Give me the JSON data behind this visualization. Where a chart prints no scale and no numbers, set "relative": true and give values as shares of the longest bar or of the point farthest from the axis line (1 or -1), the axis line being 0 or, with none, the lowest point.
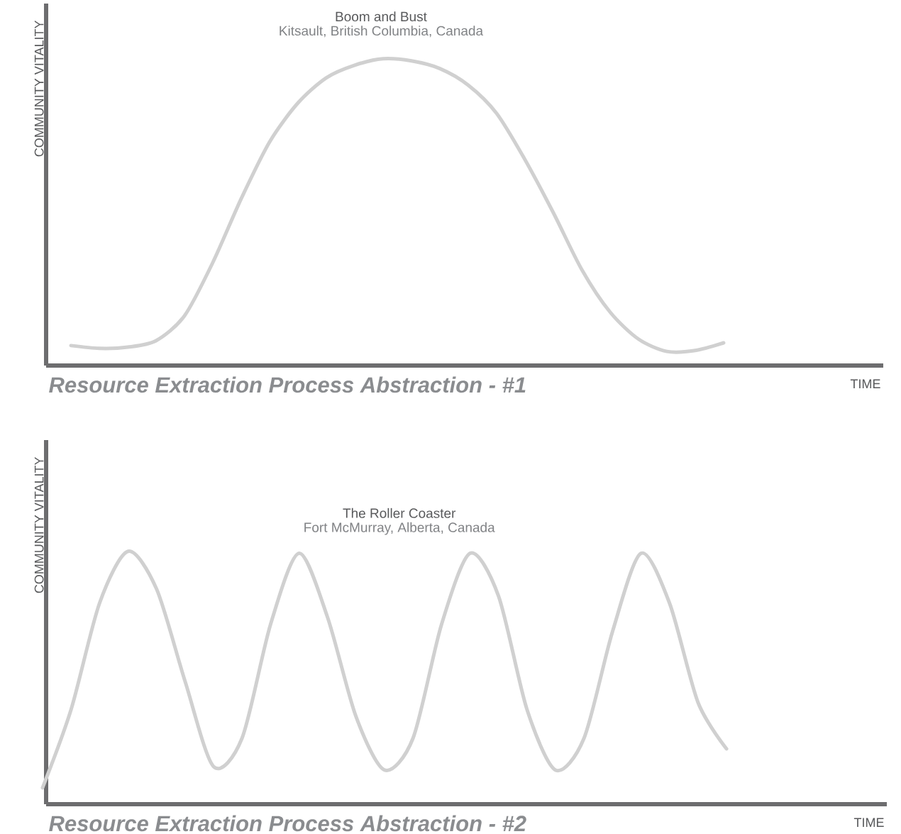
{
  "chart_data": [
    {
      "type": "line",
      "title": "Boom and Bust",
      "subtitle": "Kitsault, British Columbia, Canada",
      "xlabel": "TIME",
      "ylabel": "COMMUNITY VITALITY",
      "relative": true,
      "color": "#d0d0d0",
      "annotations": [
        "Resource Extraction Process Abstraction - #1"
      ],
      "categories": [
        null,
        null,
        null,
        null,
        null,
        null,
        null,
        null,
        null,
        null,
        null,
        null,
        null,
        null,
        null,
        null,
        null,
        null,
        null,
        null,
        null,
        null,
        null,
        null,
        null,
        null,
        null,
        null,
        null,
        null
      ],
      "values": [
        null,
        0.065,
        0.056,
        0.06,
        0.081,
        0.162,
        0.336,
        0.544,
        0.729,
        0.856,
        0.938,
        0.979,
        1.0,
        0.993,
        0.968,
        0.914,
        0.822,
        0.671,
        0.498,
        0.313,
        0.174,
        0.086,
        0.046,
        0.049,
        0.074,
        null,
        null,
        null,
        null,
        null
      ]
    },
    {
      "type": "line",
      "title": "The Roller Coaster",
      "subtitle": "Fort McMurray, Alberta, Canada",
      "xlabel": "TIME",
      "ylabel": "COMMUNITY VITALITY",
      "relative": true,
      "color": "#d0d0d0",
      "annotations": [
        "Resource Extraction Process Abstraction - #2"
      ],
      "categories": [
        null,
        null,
        null,
        null,
        null,
        null,
        null,
        null,
        null,
        null,
        null,
        null,
        null,
        null,
        null,
        null,
        null,
        null,
        null,
        null,
        null,
        null,
        null,
        null,
        null,
        null,
        null,
        null,
        null,
        null
      ],
      "values": [
        0.065,
        0.374,
        0.795,
        1.0,
        0.851,
        0.486,
        0.149,
        0.261,
        0.711,
        0.992,
        0.739,
        0.346,
        0.135,
        0.261,
        0.711,
        0.992,
        0.823,
        0.374,
        0.135,
        0.261,
        0.683,
        0.992,
        0.795,
        0.402,
        0.219,
        null,
        null,
        null,
        null,
        null
      ]
    }
  ]
}
